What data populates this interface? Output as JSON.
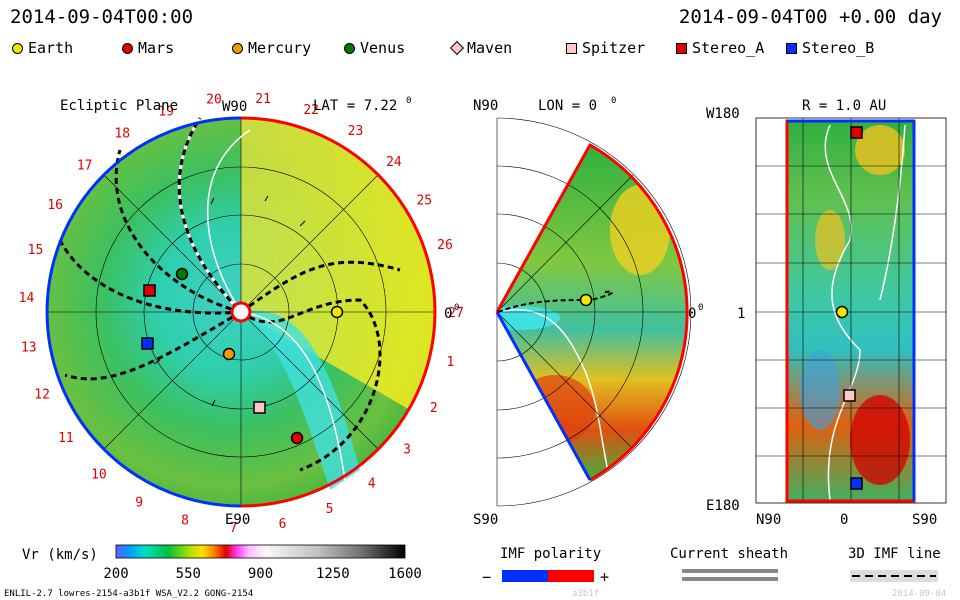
{
  "header": {
    "left_time": "2014-09-04T00:00",
    "right_time": "2014-09-04T00 +0.00 day"
  },
  "legend": [
    {
      "name": "Earth",
      "shape": "circle",
      "color": "#f2e600"
    },
    {
      "name": "Mars",
      "shape": "circle",
      "color": "#e00000"
    },
    {
      "name": "Mercury",
      "shape": "circle",
      "color": "#f29b00"
    },
    {
      "name": "Venus",
      "shape": "circle",
      "color": "#007a00"
    },
    {
      "name": "Maven",
      "shape": "diamond",
      "color": "#ffc8c8"
    },
    {
      "name": "Spitzer",
      "shape": "square",
      "color": "#ffc8c8"
    },
    {
      "name": "Stereo_A",
      "shape": "square",
      "color": "#e00000"
    },
    {
      "name": "Stereo_B",
      "shape": "square",
      "color": "#0030ff"
    }
  ],
  "ecliptic": {
    "title": "Ecliptic Plane",
    "lat_label": "LAT = 7.22",
    "deg": "0",
    "top_label": "W90",
    "bottom_label": "E90",
    "right_label": "0",
    "sectors": [
      "1",
      "2",
      "3",
      "4",
      "5",
      "6",
      "7",
      "8",
      "9",
      "10",
      "11",
      "12",
      "13",
      "14",
      "15",
      "16",
      "17",
      "18",
      "19",
      "20",
      "21",
      "22",
      "23",
      "24",
      "25",
      "26",
      "27"
    ]
  },
  "meridional": {
    "lon_label": "LON = 0",
    "deg": "0",
    "top_label": "N90",
    "bottom_label": "S90",
    "right_label": "0"
  },
  "cylindrical": {
    "r_label": "R = 1.0 AU",
    "top_left": "W180",
    "mid_left": "1",
    "bottom_left": "E180",
    "x_left": "N90",
    "x_mid": "0",
    "x_right": "S90"
  },
  "colorbar": {
    "label": "Vr (km/s)",
    "ticks": [
      "200",
      "550",
      "900",
      "1250",
      "1600"
    ]
  },
  "imf_polarity": {
    "label": "IMF polarity",
    "minus": "−",
    "plus": "+"
  },
  "current_sheath": {
    "label": "Current sheath"
  },
  "imf_line": {
    "label": "3D IMF line"
  },
  "footer": {
    "model": "ENLIL-2.7 lowres-2154-a3b1f WSA_V2.2 GONG-2154",
    "run_id": "a3b1f",
    "date": "2014-09-04"
  },
  "chart_data": {
    "type": "heatmap",
    "title": "",
    "variable": "Vr (km/s)",
    "colorbar_range": [
      200,
      1600
    ],
    "colorbar_ticks": [
      200,
      550,
      900,
      1250,
      1600
    ],
    "time": "2014-09-04T00:00",
    "offset_days": 0.0,
    "ecliptic_latitude_deg": 7.22,
    "meridional_longitude_deg": 0,
    "cylinder_radius_au": 1.0
  }
}
